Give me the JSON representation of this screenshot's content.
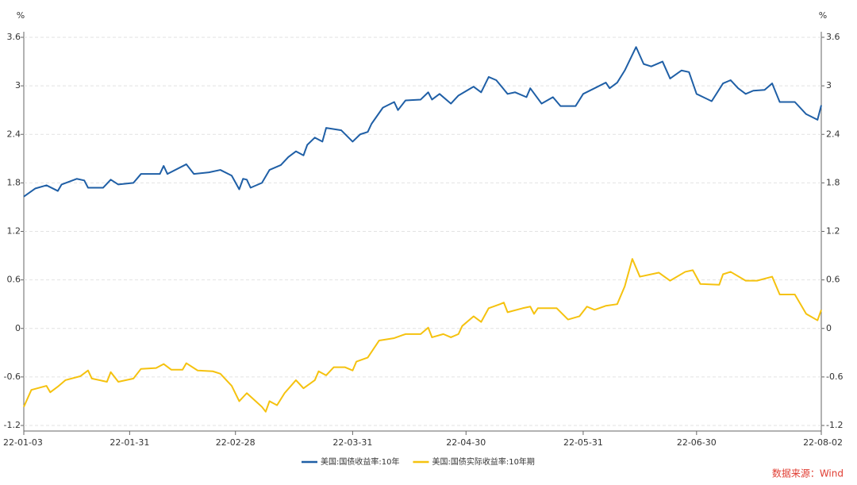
{
  "chart_data": {
    "type": "line",
    "y_label": "%",
    "y2_label": "%",
    "source": "数据来源：Wind",
    "xlim": [
      "22-01-03",
      "22-08-02"
    ],
    "xticks": [
      "22-01-03",
      "22-01-31",
      "22-02-28",
      "22-03-31",
      "22-04-30",
      "22-05-31",
      "22-06-30",
      "22-08-02"
    ],
    "ylim": [
      -1.2,
      3.6
    ],
    "yticks": [
      -1.2,
      -0.6,
      0,
      0.6,
      1.2,
      1.8,
      2.4,
      3,
      3.6
    ],
    "y2lim": [
      -1.2,
      3.6
    ],
    "y2ticks": [
      -1.2,
      -0.6,
      0,
      0.6,
      1.2,
      1.8,
      2.4,
      3,
      3.6
    ],
    "grid": true,
    "legend": "bottom",
    "series": [
      {
        "name": "美国:国债收益率:10年",
        "color": "#1f5fa6",
        "x": [
          "22-01-03",
          "22-01-06",
          "22-01-09",
          "22-01-12",
          "22-01-13",
          "22-01-17",
          "22-01-19",
          "22-01-20",
          "22-01-24",
          "22-01-26",
          "22-01-28",
          "22-02-01",
          "22-02-03",
          "22-02-08",
          "22-02-09",
          "22-02-10",
          "22-02-15",
          "22-02-17",
          "22-02-21",
          "22-02-24",
          "22-02-27",
          "22-03-01",
          "22-03-02",
          "22-03-03",
          "22-03-04",
          "22-03-07",
          "22-03-09",
          "22-03-12",
          "22-03-14",
          "22-03-16",
          "22-03-18",
          "22-03-19",
          "22-03-21",
          "22-03-23",
          "22-03-24",
          "22-03-28",
          "22-03-31",
          "22-04-02",
          "22-04-04",
          "22-04-05",
          "22-04-08",
          "22-04-11",
          "22-04-12",
          "22-04-14",
          "22-04-18",
          "22-04-20",
          "22-04-21",
          "22-04-23",
          "22-04-26",
          "22-04-28",
          "22-05-02",
          "22-05-04",
          "22-05-06",
          "22-05-08",
          "22-05-11",
          "22-05-13",
          "22-05-16",
          "22-05-17",
          "22-05-20",
          "22-05-23",
          "22-05-25",
          "22-05-29",
          "22-05-31",
          "22-06-03",
          "22-06-06",
          "22-06-07",
          "22-06-09",
          "22-06-11",
          "22-06-14",
          "22-06-16",
          "22-06-18",
          "22-06-21",
          "22-06-23",
          "22-06-26",
          "22-06-28",
          "22-06-30",
          "22-07-04",
          "22-07-07",
          "22-07-09",
          "22-07-11",
          "22-07-13",
          "22-07-15",
          "22-07-18",
          "22-07-20",
          "22-07-22",
          "22-07-26",
          "22-07-29",
          "22-08-01",
          "22-08-02"
        ],
        "values": [
          1.63,
          1.73,
          1.77,
          1.7,
          1.78,
          1.85,
          1.83,
          1.74,
          1.74,
          1.84,
          1.78,
          1.8,
          1.91,
          1.91,
          2.01,
          1.91,
          2.03,
          1.91,
          1.93,
          1.96,
          1.89,
          1.72,
          1.85,
          1.84,
          1.74,
          1.8,
          1.96,
          2.02,
          2.12,
          2.19,
          2.14,
          2.27,
          2.36,
          2.31,
          2.48,
          2.45,
          2.31,
          2.4,
          2.43,
          2.53,
          2.73,
          2.8,
          2.7,
          2.82,
          2.83,
          2.92,
          2.83,
          2.9,
          2.78,
          2.88,
          2.99,
          2.92,
          3.11,
          3.07,
          2.9,
          2.92,
          2.86,
          2.97,
          2.78,
          2.86,
          2.75,
          2.75,
          2.9,
          2.97,
          3.04,
          2.97,
          3.04,
          3.19,
          3.48,
          3.27,
          3.24,
          3.3,
          3.09,
          3.19,
          3.17,
          2.9,
          2.81,
          3.03,
          3.07,
          2.97,
          2.9,
          2.94,
          2.95,
          3.03,
          2.8,
          2.8,
          2.65,
          2.58,
          2.76
        ]
      },
      {
        "name": "美国:国债实际收益率:10年期",
        "color": "#f5c20f",
        "x": [
          "22-01-03",
          "22-01-05",
          "22-01-09",
          "22-01-10",
          "22-01-12",
          "22-01-14",
          "22-01-18",
          "22-01-20",
          "22-01-21",
          "22-01-25",
          "22-01-26",
          "22-01-28",
          "22-02-01",
          "22-02-03",
          "22-02-07",
          "22-02-09",
          "22-02-11",
          "22-02-14",
          "22-02-15",
          "22-02-18",
          "22-02-22",
          "22-02-24",
          "22-02-27",
          "22-03-01",
          "22-03-03",
          "22-03-07",
          "22-03-08",
          "22-03-09",
          "22-03-11",
          "22-03-13",
          "22-03-16",
          "22-03-18",
          "22-03-21",
          "22-03-22",
          "22-03-24",
          "22-03-26",
          "22-03-29",
          "22-03-31",
          "22-04-01",
          "22-04-04",
          "22-04-07",
          "22-04-11",
          "22-04-14",
          "22-04-18",
          "22-04-20",
          "22-04-21",
          "22-04-24",
          "22-04-26",
          "22-04-28",
          "22-04-29",
          "22-05-02",
          "22-05-04",
          "22-05-06",
          "22-05-09",
          "22-05-10",
          "22-05-11",
          "22-05-15",
          "22-05-17",
          "22-05-18",
          "22-05-19",
          "22-05-24",
          "22-05-27",
          "22-05-30",
          "22-06-01",
          "22-06-03",
          "22-06-06",
          "22-06-09",
          "22-06-11",
          "22-06-13",
          "22-06-15",
          "22-06-20",
          "22-06-23",
          "22-06-27",
          "22-06-29",
          "22-07-01",
          "22-07-06",
          "22-07-07",
          "22-07-09",
          "22-07-13",
          "22-07-16",
          "22-07-20",
          "22-07-22",
          "22-07-26",
          "22-07-29",
          "22-08-01",
          "22-08-02"
        ],
        "values": [
          -0.97,
          -0.76,
          -0.71,
          -0.79,
          -0.72,
          -0.64,
          -0.59,
          -0.52,
          -0.62,
          -0.66,
          -0.54,
          -0.66,
          -0.62,
          -0.5,
          -0.49,
          -0.44,
          -0.51,
          -0.51,
          -0.43,
          -0.52,
          -0.53,
          -0.56,
          -0.71,
          -0.9,
          -0.8,
          -0.97,
          -1.03,
          -0.9,
          -0.95,
          -0.8,
          -0.64,
          -0.74,
          -0.64,
          -0.53,
          -0.58,
          -0.48,
          -0.48,
          -0.52,
          -0.41,
          -0.36,
          -0.15,
          -0.12,
          -0.07,
          -0.07,
          0.01,
          -0.11,
          -0.07,
          -0.11,
          -0.07,
          0.03,
          0.15,
          0.08,
          0.25,
          0.3,
          0.32,
          0.2,
          0.25,
          0.27,
          0.18,
          0.25,
          0.25,
          0.11,
          0.15,
          0.27,
          0.23,
          0.28,
          0.3,
          0.52,
          0.86,
          0.64,
          0.69,
          0.59,
          0.7,
          0.72,
          0.55,
          0.54,
          0.67,
          0.7,
          0.59,
          0.59,
          0.64,
          0.42,
          0.42,
          0.18,
          0.1,
          0.23
        ]
      }
    ]
  }
}
